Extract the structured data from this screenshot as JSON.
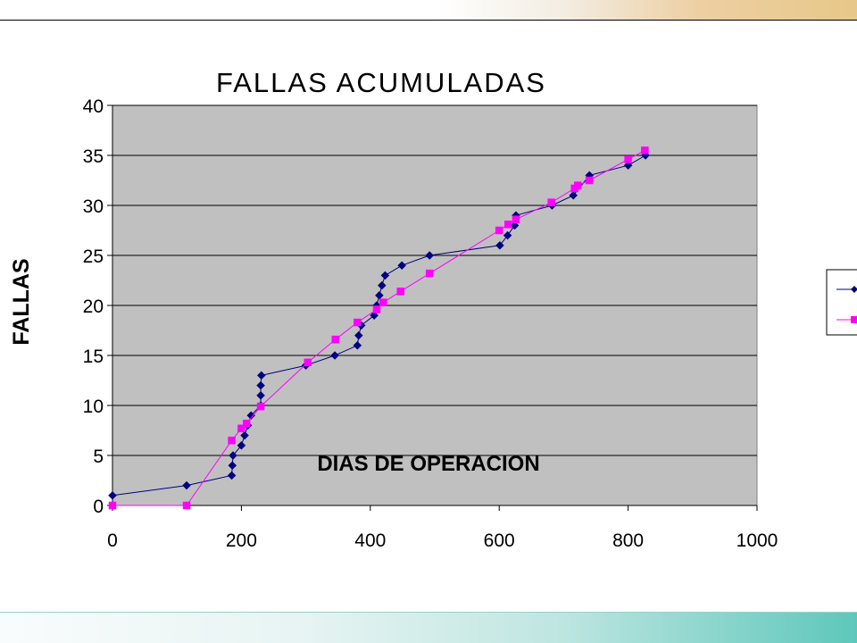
{
  "chart_data": {
    "type": "line",
    "title": "FALLAS ACUMULADAS",
    "xlabel": "DIAS DE OPERACION",
    "ylabel": "FALLAS",
    "xlim": [
      0,
      1000
    ],
    "ylim": [
      0,
      40
    ],
    "x_ticks": [
      "0",
      "200",
      "400",
      "600",
      "800",
      "1000"
    ],
    "y_ticks": [
      "0",
      "5",
      "10",
      "15",
      "20",
      "25",
      "30",
      "35",
      "40"
    ],
    "grid": true,
    "legend_position": "right",
    "series": [
      {
        "color": "#000080",
        "marker": "diamond",
        "points": [
          [
            0,
            1
          ],
          [
            115,
            2
          ],
          [
            185,
            3
          ],
          [
            186,
            4
          ],
          [
            187,
            5
          ],
          [
            200,
            6
          ],
          [
            205,
            7
          ],
          [
            210,
            8
          ],
          [
            215,
            9
          ],
          [
            230,
            10
          ],
          [
            230,
            11
          ],
          [
            230,
            12
          ],
          [
            231,
            13
          ],
          [
            300,
            14
          ],
          [
            345,
            15
          ],
          [
            380,
            16
          ],
          [
            382,
            17
          ],
          [
            386,
            18
          ],
          [
            406,
            19
          ],
          [
            410,
            20
          ],
          [
            414,
            21
          ],
          [
            418,
            22
          ],
          [
            423,
            23
          ],
          [
            449,
            24
          ],
          [
            492,
            25
          ],
          [
            601,
            26
          ],
          [
            613,
            27
          ],
          [
            624,
            28
          ],
          [
            626,
            29
          ],
          [
            682,
            30
          ],
          [
            715,
            31
          ],
          [
            740,
            33
          ],
          [
            800,
            34
          ],
          [
            827,
            35
          ]
        ]
      },
      {
        "color": "#ff00ff",
        "marker": "square",
        "points": [
          [
            0,
            0
          ],
          [
            115,
            0
          ],
          [
            185,
            6.5
          ],
          [
            200,
            7.7
          ],
          [
            208,
            8.2
          ],
          [
            230,
            9.9
          ],
          [
            303,
            14.3
          ],
          [
            346,
            16.6
          ],
          [
            380,
            18.3
          ],
          [
            410,
            19.6
          ],
          [
            420,
            20.3
          ],
          [
            447,
            21.4
          ],
          [
            492,
            23.2
          ],
          [
            600,
            27.5
          ],
          [
            614,
            28.1
          ],
          [
            626,
            28.6
          ],
          [
            681,
            30.3
          ],
          [
            717,
            31.7
          ],
          [
            722,
            32.0
          ],
          [
            740,
            32.5
          ],
          [
            800,
            34.6
          ],
          [
            826,
            35.5
          ]
        ]
      }
    ]
  }
}
